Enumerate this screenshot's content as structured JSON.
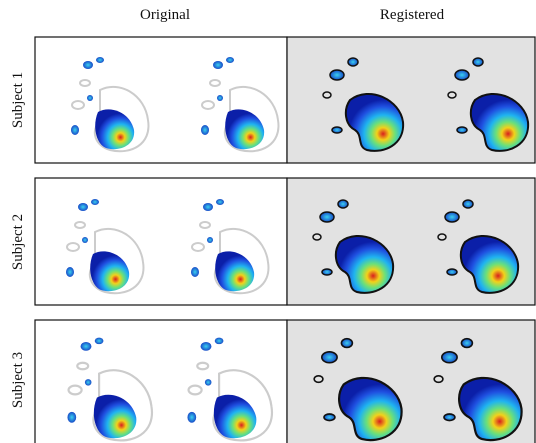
{
  "header": {
    "columns": [
      "Original",
      "Registered"
    ]
  },
  "rows": [
    {
      "label": "Subject 1"
    },
    {
      "label": "Subject 2"
    },
    {
      "label": "Subject 3"
    }
  ]
}
